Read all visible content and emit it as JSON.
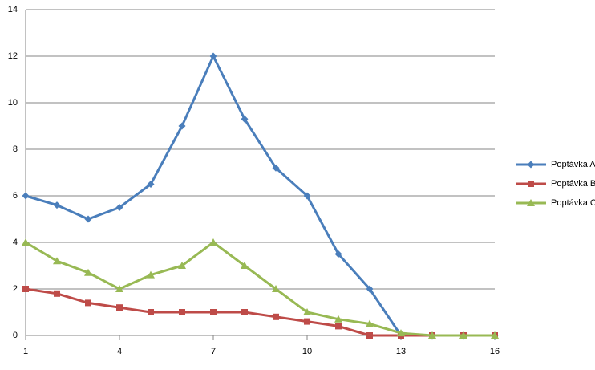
{
  "chart_data": {
    "type": "line",
    "x": [
      1,
      2,
      3,
      4,
      5,
      6,
      7,
      8,
      9,
      10,
      11,
      12,
      13,
      14,
      15,
      16
    ],
    "series": [
      {
        "name": "Poptávka A",
        "color": "#4a7ebb",
        "marker": "diamond",
        "values": [
          6,
          5.6,
          5.0,
          5.5,
          6.5,
          9.0,
          12,
          9.3,
          7.2,
          6.0,
          3.5,
          2.0,
          0,
          0,
          0,
          0
        ]
      },
      {
        "name": "Poptávka B",
        "color": "#be4b48",
        "marker": "square",
        "values": [
          2,
          1.8,
          1.4,
          1.2,
          1.0,
          1.0,
          1.0,
          1.0,
          0.8,
          0.6,
          0.4,
          0,
          0,
          0,
          0,
          0
        ]
      },
      {
        "name": "Poptávka C",
        "color": "#98b954",
        "marker": "triangle",
        "values": [
          4,
          3.2,
          2.7,
          2.0,
          2.6,
          3.0,
          4.0,
          3.0,
          2.0,
          1.0,
          0.7,
          0.5,
          0.1,
          0,
          0,
          0
        ]
      }
    ],
    "xlim": [
      1,
      16
    ],
    "xticks": [
      1,
      4,
      7,
      10,
      13,
      16
    ],
    "ylim": [
      0,
      14
    ],
    "yticks": [
      0,
      2,
      4,
      6,
      8,
      10,
      12,
      14
    ],
    "grid": true,
    "legend": "right"
  }
}
